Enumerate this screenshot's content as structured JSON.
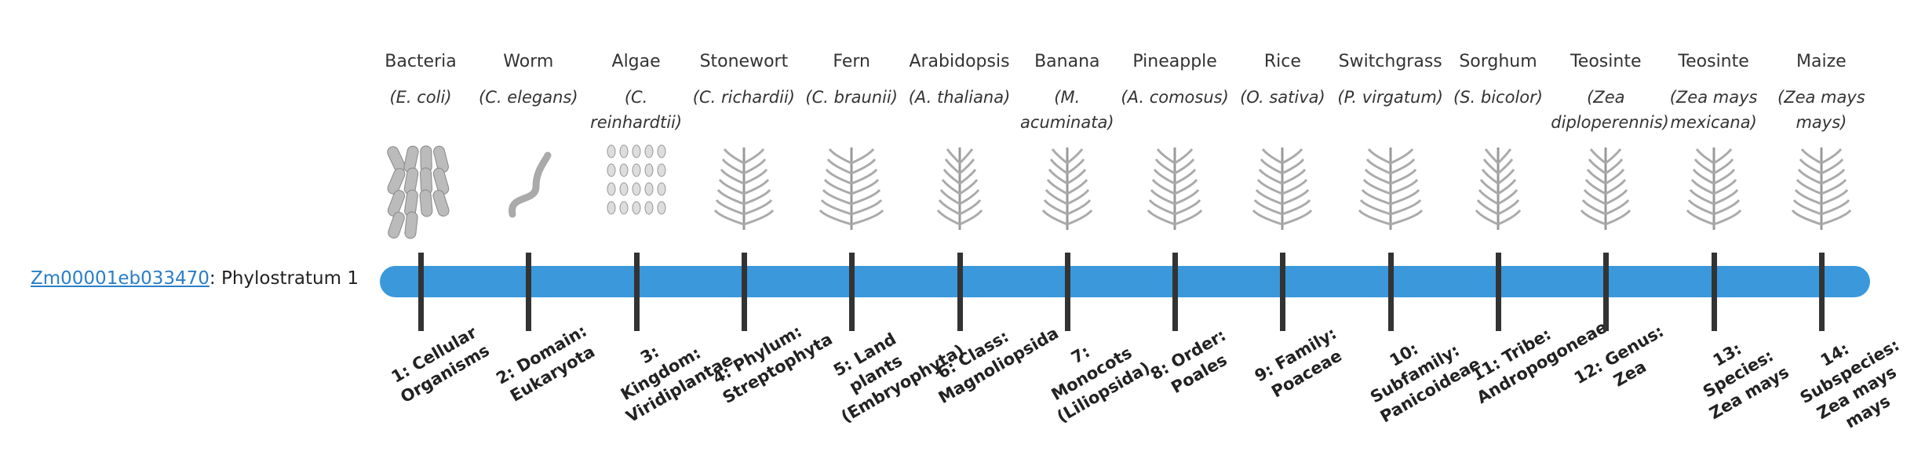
{
  "gene": {
    "id": "Zm00001eb033470",
    "label": ": Phylostratum 1"
  },
  "strata": [
    {
      "common": "Bacteria",
      "scientific": "(E. coli)",
      "rank": "1: Cellular Organisms"
    },
    {
      "common": "Worm",
      "scientific": "(C. elegans)",
      "rank": "2: Domain: Eukaryota"
    },
    {
      "common": "Algae",
      "scientific": "(C. reinhardtii)",
      "rank": "3: Kingdom: Viridiplantae"
    },
    {
      "common": "Stonewort",
      "scientific": "(C. richardii)",
      "rank": "4: Phylum: Streptophyta"
    },
    {
      "common": "Fern",
      "scientific": "(C. braunii)",
      "rank": "5: Land plants (Embryophyta)"
    },
    {
      "common": "Arabidopsis",
      "scientific": "(A. thaliana)",
      "rank": "6: Class: Magnoliopsida"
    },
    {
      "common": "Banana",
      "scientific": "(M. acuminata)",
      "rank": "7: Monocots (Liliopsida)"
    },
    {
      "common": "Pineapple",
      "scientific": "(A. comosus)",
      "rank": "8: Order: Poales"
    },
    {
      "common": "Rice",
      "scientific": "(O. sativa)",
      "rank": "9: Family: Poaceae"
    },
    {
      "common": "Switchgrass",
      "scientific": "(P. virgatum)",
      "rank": "10: Subfamily: Panicoideae"
    },
    {
      "common": "Sorghum",
      "scientific": "(S. bicolor)",
      "rank": "11: Tribe: Andropogoneae"
    },
    {
      "common": "Teosinte",
      "scientific": "(Zea diploperennis)",
      "rank": "12: Genus: Zea"
    },
    {
      "common": "Teosinte",
      "scientific": "(Zea mays mexicana)",
      "rank": "13: Species: Zea mays"
    },
    {
      "common": "Maize",
      "scientific": "(Zea mays mays)",
      "rank": "14: Subspecies: Zea mays mays"
    }
  ]
}
